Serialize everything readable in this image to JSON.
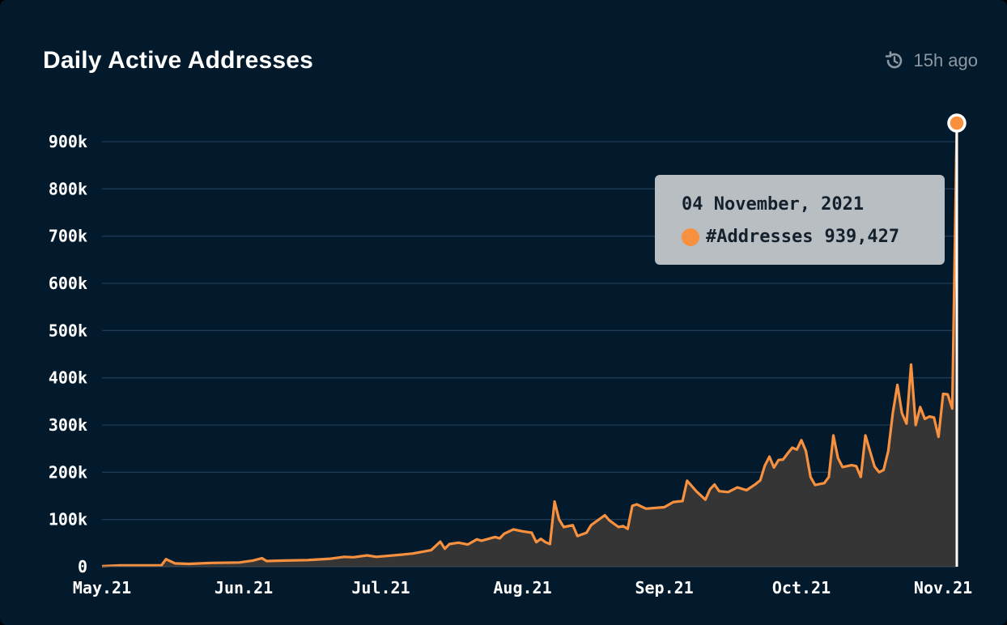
{
  "header": {
    "title": "Daily Active Addresses",
    "updated": "15h ago"
  },
  "tooltip": {
    "date": "04 November, 2021",
    "series_label": "#Addresses",
    "value": "939,427"
  },
  "colors": {
    "background": "#021a2c",
    "line": "#f7913f",
    "area": "#363536",
    "grid": "#1f3a55",
    "tooltip_bg": "#b9bec3"
  },
  "chart_data": {
    "type": "area",
    "title": "Daily Active Addresses",
    "ylim": [
      0,
      900000
    ],
    "yticks": [
      0,
      100000,
      200000,
      300000,
      400000,
      500000,
      600000,
      700000,
      800000,
      900000
    ],
    "ytick_labels": [
      "0",
      "100k",
      "200k",
      "300k",
      "400k",
      "500k",
      "600k",
      "700k",
      "800k",
      "900k"
    ],
    "xlim": [
      "2021-05-01",
      "2021-11-04"
    ],
    "xticks": [
      "2021-05-01",
      "2021-06-01",
      "2021-07-01",
      "2021-08-01",
      "2021-09-01",
      "2021-10-01",
      "2021-11-01"
    ],
    "xtick_labels": [
      "May.21",
      "Jun.21",
      "Jul.21",
      "Aug.21",
      "Sep.21",
      "Oct.21",
      "Nov.21"
    ],
    "grid": true,
    "series": [
      {
        "name": "#Addresses",
        "points": [
          [
            "2021-05-01",
            1000
          ],
          [
            "2021-05-05",
            3000
          ],
          [
            "2021-05-10",
            3000
          ],
          [
            "2021-05-14",
            3000
          ],
          [
            "2021-05-15",
            16000
          ],
          [
            "2021-05-17",
            7000
          ],
          [
            "2021-05-20",
            6000
          ],
          [
            "2021-05-25",
            8000
          ],
          [
            "2021-05-31",
            9000
          ],
          [
            "2021-06-03",
            13000
          ],
          [
            "2021-06-05",
            18000
          ],
          [
            "2021-06-06",
            12000
          ],
          [
            "2021-06-10",
            13000
          ],
          [
            "2021-06-15",
            14000
          ],
          [
            "2021-06-20",
            17000
          ],
          [
            "2021-06-23",
            21000
          ],
          [
            "2021-06-25",
            20000
          ],
          [
            "2021-06-28",
            24000
          ],
          [
            "2021-06-30",
            21000
          ],
          [
            "2021-07-05",
            25000
          ],
          [
            "2021-07-08",
            28000
          ],
          [
            "2021-07-12",
            35000
          ],
          [
            "2021-07-14",
            53000
          ],
          [
            "2021-07-15",
            38000
          ],
          [
            "2021-07-16",
            48000
          ],
          [
            "2021-07-18",
            51000
          ],
          [
            "2021-07-20",
            47000
          ],
          [
            "2021-07-22",
            58000
          ],
          [
            "2021-07-23",
            55000
          ],
          [
            "2021-07-26",
            63000
          ],
          [
            "2021-07-27",
            60000
          ],
          [
            "2021-07-28",
            70000
          ],
          [
            "2021-07-30",
            79000
          ],
          [
            "2021-08-01",
            75000
          ],
          [
            "2021-08-03",
            72000
          ],
          [
            "2021-08-04",
            52000
          ],
          [
            "2021-08-05",
            59000
          ],
          [
            "2021-08-06",
            52000
          ],
          [
            "2021-08-07",
            48000
          ],
          [
            "2021-08-08",
            138000
          ],
          [
            "2021-08-09",
            100000
          ],
          [
            "2021-08-10",
            84000
          ],
          [
            "2021-08-12",
            88000
          ],
          [
            "2021-08-13",
            65000
          ],
          [
            "2021-08-15",
            72000
          ],
          [
            "2021-08-16",
            88000
          ],
          [
            "2021-08-18",
            102000
          ],
          [
            "2021-08-19",
            109000
          ],
          [
            "2021-08-20",
            98000
          ],
          [
            "2021-08-22",
            84000
          ],
          [
            "2021-08-23",
            86000
          ],
          [
            "2021-08-24",
            80000
          ],
          [
            "2021-08-25",
            129000
          ],
          [
            "2021-08-26",
            132000
          ],
          [
            "2021-08-28",
            123000
          ],
          [
            "2021-09-01",
            126000
          ],
          [
            "2021-09-03",
            137000
          ],
          [
            "2021-09-05",
            139000
          ],
          [
            "2021-09-06",
            182000
          ],
          [
            "2021-09-08",
            160000
          ],
          [
            "2021-09-10",
            142000
          ],
          [
            "2021-09-11",
            164000
          ],
          [
            "2021-09-12",
            174000
          ],
          [
            "2021-09-13",
            160000
          ],
          [
            "2021-09-15",
            158000
          ],
          [
            "2021-09-17",
            168000
          ],
          [
            "2021-09-19",
            162000
          ],
          [
            "2021-09-21",
            175000
          ],
          [
            "2021-09-22",
            183000
          ],
          [
            "2021-09-23",
            214000
          ],
          [
            "2021-09-24",
            233000
          ],
          [
            "2021-09-25",
            210000
          ],
          [
            "2021-09-26",
            226000
          ],
          [
            "2021-09-27",
            227000
          ],
          [
            "2021-09-28",
            240000
          ],
          [
            "2021-09-29",
            252000
          ],
          [
            "2021-09-30",
            248000
          ],
          [
            "2021-10-01",
            268000
          ],
          [
            "2021-10-02",
            245000
          ],
          [
            "2021-10-03",
            190000
          ],
          [
            "2021-10-04",
            173000
          ],
          [
            "2021-10-06",
            177000
          ],
          [
            "2021-10-07",
            190000
          ],
          [
            "2021-10-08",
            278000
          ],
          [
            "2021-10-09",
            230000
          ],
          [
            "2021-10-10",
            211000
          ],
          [
            "2021-10-12",
            215000
          ],
          [
            "2021-10-13",
            213000
          ],
          [
            "2021-10-14",
            190000
          ],
          [
            "2021-10-15",
            278000
          ],
          [
            "2021-10-16",
            245000
          ],
          [
            "2021-10-17",
            212000
          ],
          [
            "2021-10-18",
            200000
          ],
          [
            "2021-10-19",
            205000
          ],
          [
            "2021-10-20",
            245000
          ],
          [
            "2021-10-21",
            325000
          ],
          [
            "2021-10-22",
            385000
          ],
          [
            "2021-10-23",
            325000
          ],
          [
            "2021-10-24",
            303000
          ],
          [
            "2021-10-25",
            428000
          ],
          [
            "2021-10-26",
            300000
          ],
          [
            "2021-10-27",
            338000
          ],
          [
            "2021-10-28",
            313000
          ],
          [
            "2021-10-29",
            318000
          ],
          [
            "2021-10-30",
            316000
          ],
          [
            "2021-10-31",
            275000
          ],
          [
            "2021-11-01",
            366000
          ],
          [
            "2021-11-02",
            365000
          ],
          [
            "2021-11-03",
            335000
          ],
          [
            "2021-11-04",
            939427
          ]
        ]
      }
    ]
  }
}
